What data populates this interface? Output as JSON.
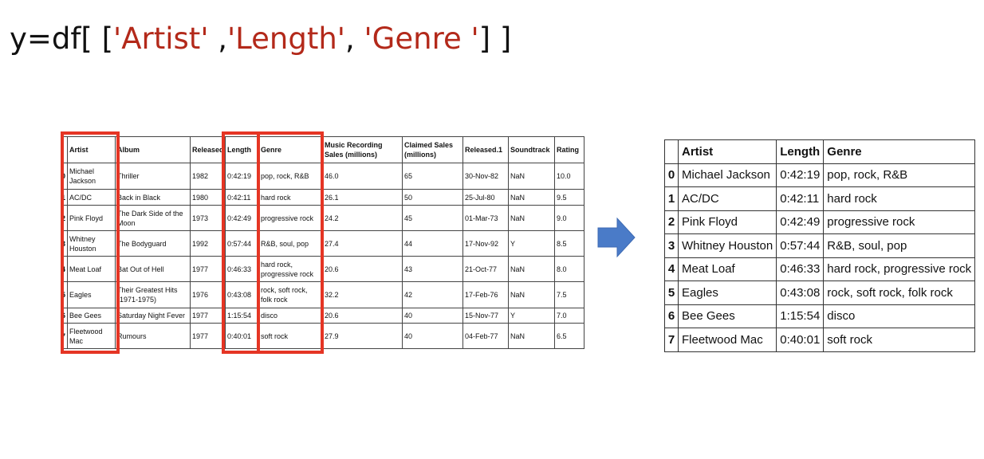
{
  "code": {
    "prefix": "y=df[ [",
    "s1": "'Artist'",
    "sep1": " ,",
    "s2": "'Length'",
    "sep2": ", ",
    "s3": "'Genre '",
    "suffix": "] ]"
  },
  "source_table": {
    "headers": [
      "",
      "Artist",
      "Album",
      "Released",
      "Length",
      "Genre",
      "Music Recording Sales (millions)",
      "Claimed Sales (millions)",
      "Released.1",
      "Soundtrack",
      "Rating"
    ],
    "rows": [
      [
        "0",
        "Michael Jackson",
        "Thriller",
        "1982",
        "0:42:19",
        "pop, rock, R&B",
        "46.0",
        "65",
        "30-Nov-82",
        "NaN",
        "10.0"
      ],
      [
        "1",
        "AC/DC",
        "Back in Black",
        "1980",
        "0:42:11",
        "hard rock",
        "26.1",
        "50",
        "25-Jul-80",
        "NaN",
        "9.5"
      ],
      [
        "2",
        "Pink Floyd",
        "The Dark Side of the Moon",
        "1973",
        "0:42:49",
        "progressive rock",
        "24.2",
        "45",
        "01-Mar-73",
        "NaN",
        "9.0"
      ],
      [
        "3",
        "Whitney Houston",
        "The Bodyguard",
        "1992",
        "0:57:44",
        "R&B, soul, pop",
        "27.4",
        "44",
        "17-Nov-92",
        "Y",
        "8.5"
      ],
      [
        "4",
        "Meat Loaf",
        "Bat Out of Hell",
        "1977",
        "0:46:33",
        "hard rock, progressive rock",
        "20.6",
        "43",
        "21-Oct-77",
        "NaN",
        "8.0"
      ],
      [
        "5",
        "Eagles",
        "Their Greatest Hits (1971-1975)",
        "1976",
        "0:43:08",
        "rock, soft rock, folk rock",
        "32.2",
        "42",
        "17-Feb-76",
        "NaN",
        "7.5"
      ],
      [
        "6",
        "Bee Gees",
        "Saturday Night Fever",
        "1977",
        "1:15:54",
        "disco",
        "20.6",
        "40",
        "15-Nov-77",
        "Y",
        "7.0"
      ],
      [
        "7",
        "Fleetwood Mac",
        "Rumours",
        "1977",
        "0:40:01",
        "soft rock",
        "27.9",
        "40",
        "04-Feb-77",
        "NaN",
        "6.5"
      ]
    ]
  },
  "result_table": {
    "headers": [
      "",
      "Artist",
      "Length",
      "Genre"
    ],
    "rows": [
      [
        "0",
        "Michael Jackson",
        "0:42:19",
        "pop, rock, R&B"
      ],
      [
        "1",
        "AC/DC",
        "0:42:11",
        "hard rock"
      ],
      [
        "2",
        "Pink Floyd",
        "0:42:49",
        "progressive rock"
      ],
      [
        "3",
        "Whitney Houston",
        "0:57:44",
        "R&B, soul, pop"
      ],
      [
        "4",
        "Meat Loaf",
        "0:46:33",
        "hard rock, progressive rock"
      ],
      [
        "5",
        "Eagles",
        "0:43:08",
        "rock, soft rock, folk rock"
      ],
      [
        "6",
        "Bee Gees",
        "1:15:54",
        "disco"
      ],
      [
        "7",
        "Fleetwood Mac",
        "0:40:01",
        "soft rock"
      ]
    ]
  },
  "colors": {
    "highlight": "#e53524",
    "string_literal": "#b3291a",
    "arrow": "#4a7bc8"
  },
  "icons": {
    "arrow": "arrow-right-icon"
  }
}
